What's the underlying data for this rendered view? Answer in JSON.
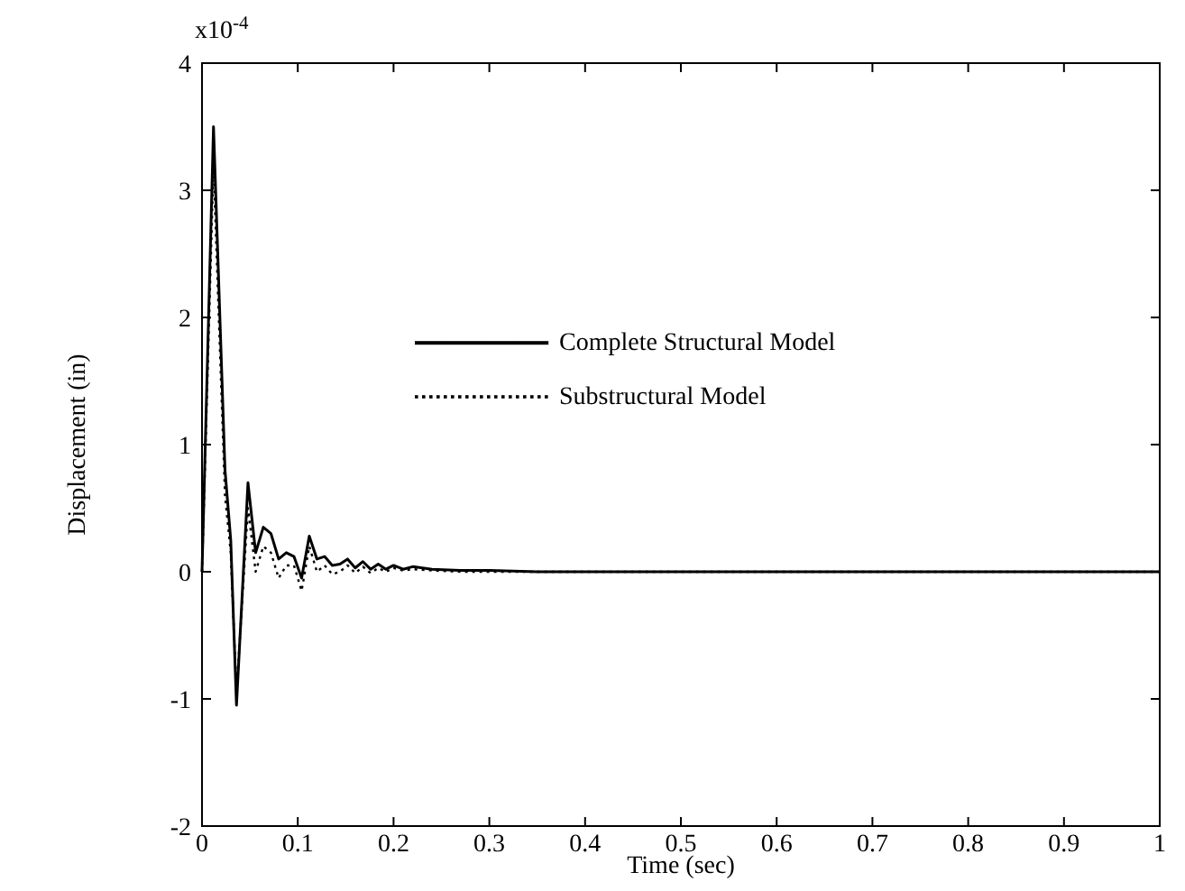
{
  "chart_data": {
    "type": "line",
    "xlabel": "Time (sec)",
    "ylabel": "Displacement (in)",
    "annotations": [
      "x10$^{-4}$"
    ],
    "xlim": [
      0,
      1
    ],
    "xticks": [
      0,
      0.1,
      0.2,
      0.3,
      0.4,
      0.5,
      0.6,
      0.7,
      0.8,
      0.9,
      1
    ],
    "ylim": [
      -2,
      4
    ],
    "yticks": [
      -2,
      -1,
      0,
      1,
      2,
      3,
      4
    ],
    "grid": false,
    "legend": "top left",
    "series": [
      {
        "name": "Complete Structural Model",
        "color": "#000000",
        "line_style": "solid",
        "x": [
          0,
          0.012,
          0.024,
          0.03,
          0.036,
          0.048,
          0.056,
          0.064,
          0.072,
          0.08,
          0.088,
          0.096,
          0.104,
          0.112,
          0.12,
          0.128,
          0.136,
          0.144,
          0.152,
          0.16,
          0.168,
          0.176,
          0.184,
          0.192,
          0.2,
          0.21,
          0.22,
          0.24,
          0.27,
          0.3,
          0.35,
          1
        ],
        "values": [
          0,
          3.5,
          0.8,
          0.25,
          -1.05,
          0.7,
          0.15,
          0.35,
          0.3,
          0.1,
          0.15,
          0.12,
          -0.05,
          0.28,
          0.1,
          0.12,
          0.05,
          0.06,
          0.1,
          0.03,
          0.08,
          0.02,
          0.06,
          0.02,
          0.05,
          0.02,
          0.04,
          0.02,
          0.01,
          0.01,
          0,
          0
        ]
      },
      {
        "name": "Substructural Model",
        "color": "#000000",
        "line_style": "dotted",
        "x": [
          0,
          0.012,
          0.024,
          0.03,
          0.036,
          0.048,
          0.056,
          0.064,
          0.072,
          0.08,
          0.088,
          0.096,
          0.104,
          0.112,
          0.12,
          0.128,
          0.136,
          0.144,
          0.152,
          0.16,
          0.168,
          0.176,
          0.184,
          0.192,
          0.2,
          0.21,
          0.22,
          0.24,
          0.27,
          0.3,
          0.35,
          1
        ],
        "values": [
          0,
          3.2,
          0.6,
          0.15,
          -0.95,
          0.5,
          0.0,
          0.2,
          0.15,
          -0.05,
          0.05,
          0.05,
          -0.15,
          0.2,
          0.0,
          0.05,
          -0.02,
          0.0,
          0.05,
          -0.01,
          0.04,
          -0.01,
          0.03,
          0.0,
          0.03,
          0.01,
          0.02,
          0.01,
          0.0,
          0.0,
          0,
          0
        ]
      }
    ]
  }
}
